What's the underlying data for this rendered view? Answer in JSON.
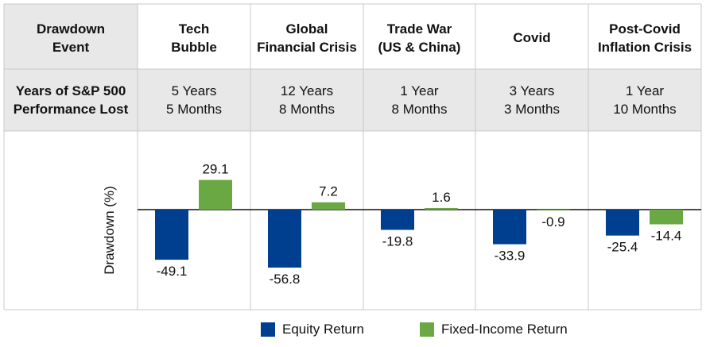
{
  "colors": {
    "equity": "#003f8f",
    "fixed_income": "#6aa843",
    "header_bg": "#e8e8e8",
    "grid": "#c9c9c9"
  },
  "table": {
    "header_label": [
      "Drawdown",
      "Event"
    ],
    "row_label": [
      "Years of S&P 500",
      "Performance Lost"
    ],
    "events": [
      {
        "name": [
          "Tech",
          "Bubble"
        ],
        "lost": [
          "5 Years",
          "5 Months"
        ]
      },
      {
        "name": [
          "Global",
          "Financial Crisis"
        ],
        "lost": [
          "12 Years",
          "8 Months"
        ]
      },
      {
        "name": [
          "Trade War",
          "(US & China)"
        ],
        "lost": [
          "1 Year",
          "8 Months"
        ]
      },
      {
        "name": [
          "Covid",
          ""
        ],
        "lost": [
          "3 Years",
          "3 Months"
        ]
      },
      {
        "name": [
          "Post-Covid",
          "Inflation Crisis"
        ],
        "lost": [
          "1 Year",
          "10 Months"
        ]
      }
    ]
  },
  "chart_data": {
    "type": "bar",
    "ylabel": "Drawdown (%)",
    "categories": [
      "Tech Bubble",
      "Global Financial Crisis",
      "Trade War (US & China)",
      "Covid",
      "Post-Covid Inflation Crisis"
    ],
    "series": [
      {
        "name": "Equity Return",
        "values": [
          -49.1,
          -56.8,
          -19.8,
          -33.9,
          -25.4
        ]
      },
      {
        "name": "Fixed-Income Return",
        "values": [
          29.1,
          7.2,
          1.6,
          -0.9,
          -14.4
        ]
      }
    ],
    "data_labels": [
      [
        "-49.1",
        "-56.8",
        "-19.8",
        "-33.9",
        "-25.4"
      ],
      [
        "29.1",
        "7.2",
        "1.6",
        "-0.9",
        "-14.4"
      ]
    ],
    "legend_position": "bottom",
    "grid": false
  }
}
